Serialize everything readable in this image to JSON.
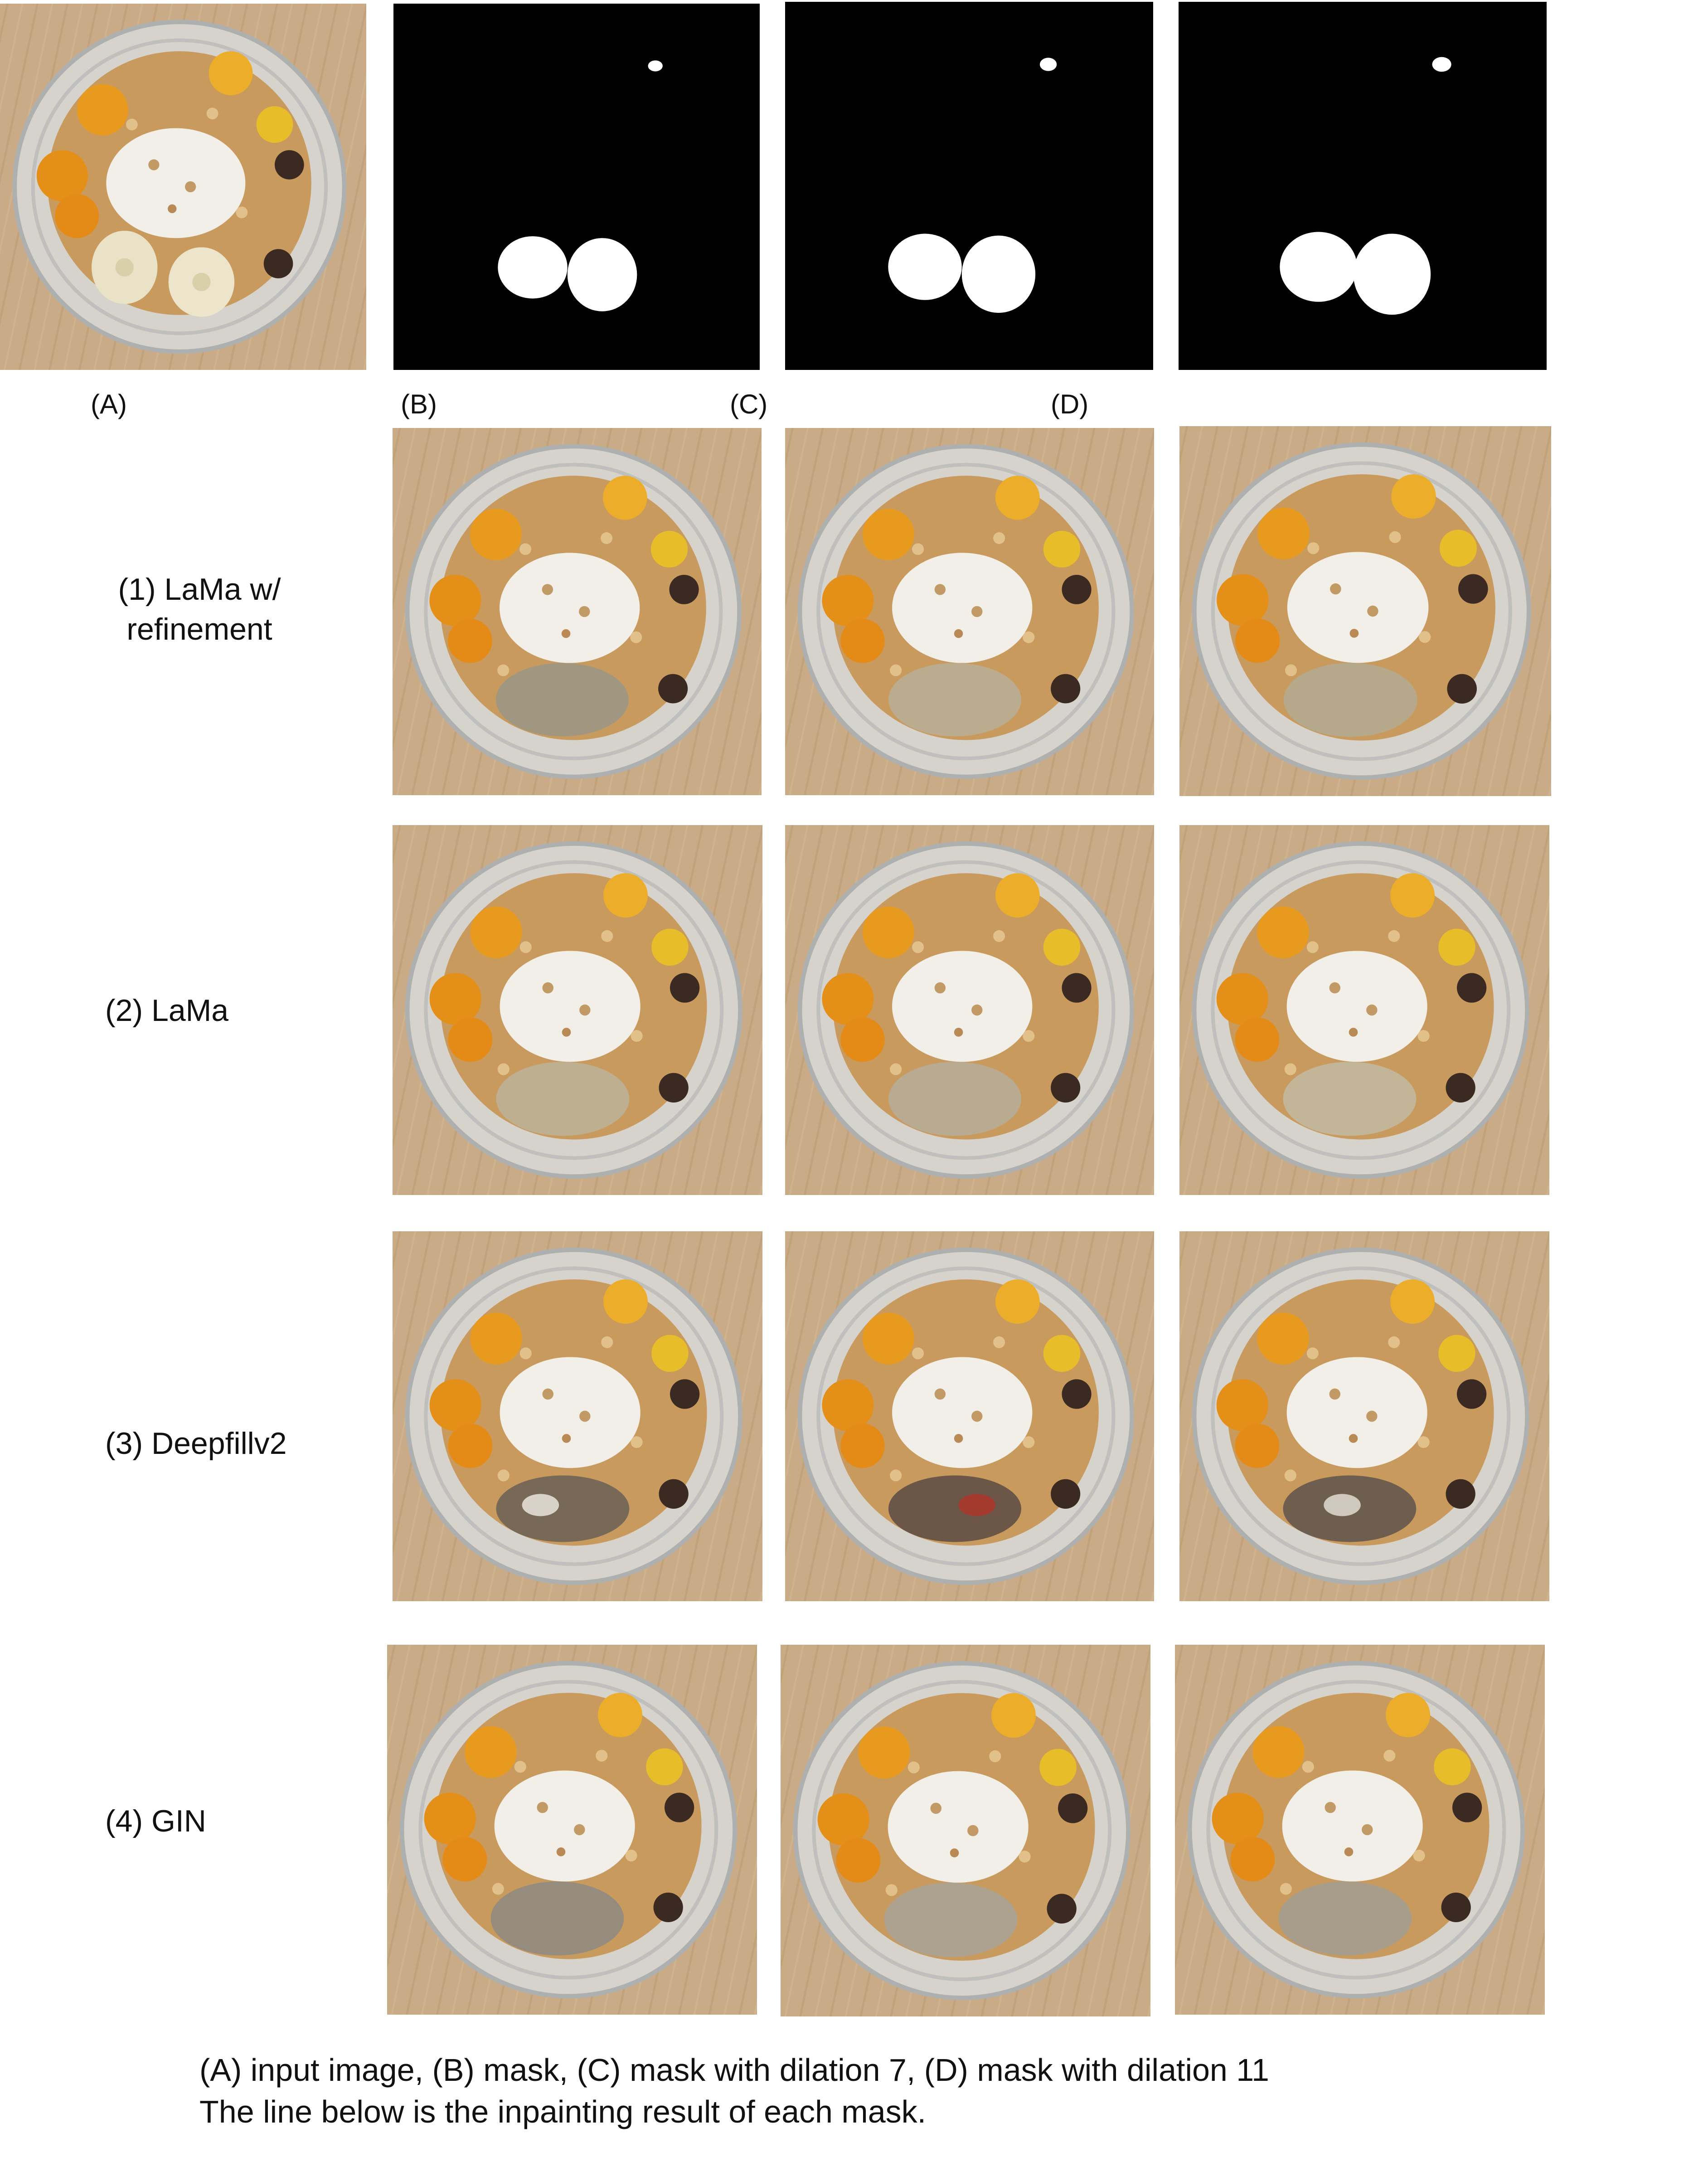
{
  "column_labels": [
    "(A)",
    "(B)",
    "(C)",
    "(D)"
  ],
  "row_labels": [
    [
      "(1)  LaMa w/",
      "refinement"
    ],
    [
      "(2) LaMa"
    ],
    [
      "(3) Deepfillv2"
    ],
    [
      "(4) GIN"
    ]
  ],
  "caption": {
    "line1": "(A) input image, (B) mask, (C) mask with dilation 7, (D) mask with dilation 11",
    "line2": "The line below is the inpainting result of each mask."
  },
  "colors": {
    "wood": "#c9ab87",
    "mask_bg": "#000000",
    "mask_fg": "#ffffff",
    "orange_fruit": "#e89a1e",
    "granola": "#c99a5e",
    "yogurt": "#f2efe9"
  }
}
